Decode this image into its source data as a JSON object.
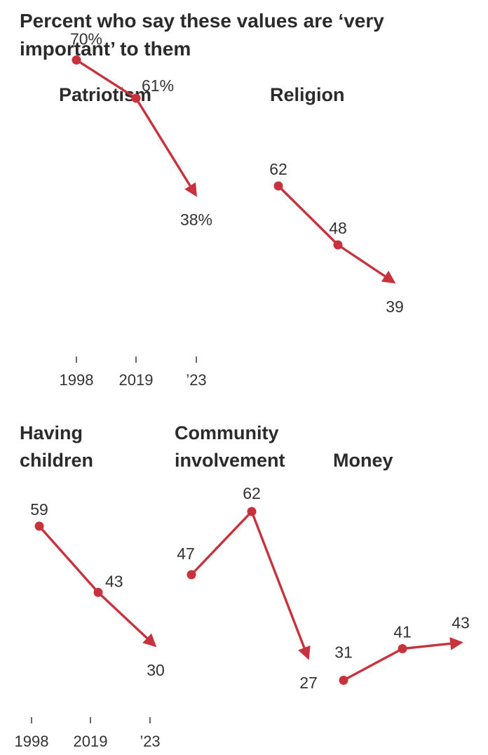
{
  "title": "Percent who say these values are ‘very important’ to them",
  "colors": {
    "line": "#c8323c",
    "text": "#2b2b2b"
  },
  "chart_data": [
    {
      "type": "line",
      "title": [
        "Patriotism"
      ],
      "x": [
        "1998",
        "2019",
        "’23"
      ],
      "values": [
        70,
        61,
        38
      ],
      "labels": [
        "70%",
        "61%",
        "38%"
      ]
    },
    {
      "type": "line",
      "title": [
        "Religion"
      ],
      "x": [
        "1998",
        "2019",
        "’23"
      ],
      "values": [
        62,
        48,
        39
      ],
      "labels": [
        "62",
        "48",
        "39"
      ]
    },
    {
      "type": "line",
      "title": [
        "Having",
        "children"
      ],
      "x": [
        "1998",
        "2019",
        "’23"
      ],
      "values": [
        59,
        43,
        30
      ],
      "labels": [
        "59",
        "43",
        "30"
      ]
    },
    {
      "type": "line",
      "title": [
        "Community",
        "involvement"
      ],
      "x": [
        "1998",
        "2019",
        "’23"
      ],
      "values": [
        47,
        62,
        27
      ],
      "labels": [
        "47",
        "62",
        "27"
      ]
    },
    {
      "type": "line",
      "title": [
        "Money"
      ],
      "x": [
        "1998",
        "2019",
        "’23"
      ],
      "values": [
        31,
        41,
        43
      ],
      "labels": [
        "31",
        "41",
        "43"
      ]
    }
  ],
  "axis_rows": [
    {
      "ticks": [
        "1998",
        "2019",
        "’23"
      ]
    },
    {
      "ticks": [
        "1998",
        "2019",
        "’23"
      ]
    }
  ]
}
